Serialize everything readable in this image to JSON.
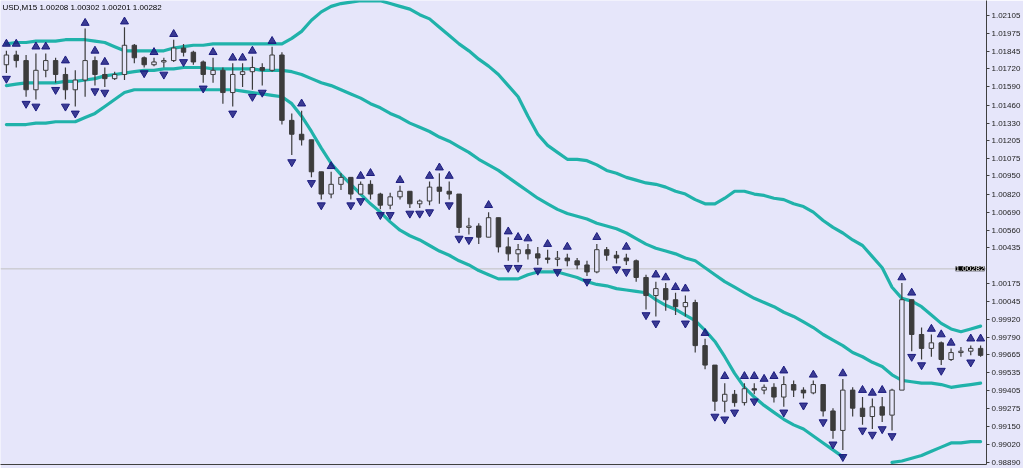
{
  "chart_data": {
    "type": "candlestick",
    "title": "USD,M15 1.00208 1.00302 1.00201 1.00282",
    "color": "#3c3c3c",
    "categories": [
      null,
      null,
      null,
      null,
      null,
      null,
      null,
      null,
      null,
      null,
      null,
      null,
      null,
      null,
      null,
      null,
      null,
      null,
      null,
      null,
      null,
      null,
      null,
      null,
      null,
      null,
      null,
      null,
      null,
      null,
      null,
      null,
      null,
      null,
      null,
      null,
      null,
      null,
      null,
      null,
      null,
      null,
      null,
      null,
      null,
      null,
      null,
      null,
      null,
      null,
      null,
      null,
      null,
      null,
      null,
      null,
      null,
      null,
      null,
      null,
      null,
      null,
      null,
      null,
      null,
      null,
      null,
      null,
      null,
      null,
      null,
      null,
      null,
      null,
      null,
      null,
      null,
      null,
      null,
      null,
      null,
      null,
      null,
      null,
      null,
      null,
      null,
      null,
      null,
      null,
      null,
      null,
      null,
      null,
      null,
      null,
      null,
      null,
      null,
      null
    ],
    "ohlc": [
      [
        1.0175,
        1.0185,
        1.0169,
        1.0182
      ],
      [
        1.0182,
        1.0185,
        1.0173,
        1.0178
      ],
      [
        1.0178,
        1.0182,
        1.0152,
        1.0157
      ],
      [
        1.0157,
        1.0183,
        1.015,
        1.0171
      ],
      [
        1.0171,
        1.0183,
        1.0166,
        1.0178
      ],
      [
        1.0178,
        1.018,
        1.0162,
        1.0168
      ],
      [
        1.0168,
        1.0173,
        1.015,
        1.0157
      ],
      [
        1.0157,
        1.0171,
        1.0145,
        1.0164
      ],
      [
        1.0164,
        1.0201,
        1.0152,
        1.0178
      ],
      [
        1.0178,
        1.0181,
        1.016,
        1.0168
      ],
      [
        1.0168,
        1.0173,
        1.0159,
        1.0165
      ],
      [
        1.0165,
        1.017,
        1.0164,
        1.0168
      ],
      [
        1.0168,
        1.0202,
        1.0164,
        1.0189
      ],
      [
        1.0189,
        1.019,
        1.0176,
        1.018
      ],
      [
        1.018,
        1.0181,
        1.0173,
        1.0175
      ],
      [
        1.0175,
        1.018,
        1.0174,
        1.0177
      ],
      [
        1.0177,
        1.018,
        1.0173,
        1.0178
      ],
      [
        1.0178,
        1.0193,
        1.0177,
        1.0187
      ],
      [
        1.0187,
        1.019,
        1.0181,
        1.0184
      ],
      [
        1.0184,
        1.0185,
        1.0175,
        1.0177
      ],
      [
        1.0177,
        1.0178,
        1.0162,
        1.0168
      ],
      [
        1.0168,
        1.018,
        1.0162,
        1.0171
      ],
      [
        1.0171,
        1.0173,
        1.0147,
        1.0155
      ],
      [
        1.0155,
        1.0176,
        1.0145,
        1.0168
      ],
      [
        1.0168,
        1.0176,
        1.0159,
        1.017
      ],
      [
        1.017,
        1.0181,
        1.0157,
        1.0173
      ],
      [
        1.0173,
        1.0176,
        1.016,
        1.0171
      ],
      [
        1.0171,
        1.0188,
        1.017,
        1.0182
      ],
      [
        1.0182,
        1.0184,
        1.0132,
        1.0135
      ],
      [
        1.0135,
        1.014,
        1.011,
        1.0125
      ],
      [
        1.0125,
        1.0142,
        1.0117,
        1.0121
      ],
      [
        1.0121,
        1.0121,
        1.0094,
        1.0098
      ],
      [
        1.0098,
        1.0098,
        1.0078,
        1.0082
      ],
      [
        1.0082,
        1.0098,
        1.0079,
        1.0089
      ],
      [
        1.0089,
        1.0097,
        1.0085,
        1.0094
      ],
      [
        1.0094,
        1.0094,
        1.0078,
        1.0082
      ],
      [
        1.0082,
        1.0091,
        1.0082,
        1.0089
      ],
      [
        1.0089,
        1.0092,
        1.0078,
        1.0082
      ],
      [
        1.0082,
        1.0083,
        1.0071,
        1.0074
      ],
      [
        1.0074,
        1.0083,
        1.0071,
        1.008
      ],
      [
        1.008,
        1.0088,
        1.0078,
        1.0084
      ],
      [
        1.0084,
        1.0084,
        1.0072,
        1.0075
      ],
      [
        1.0075,
        1.0078,
        1.0072,
        1.0077
      ],
      [
        1.0077,
        1.0091,
        1.0074,
        1.0087
      ],
      [
        1.0087,
        1.0097,
        1.0075,
        1.0084
      ],
      [
        1.0084,
        1.0091,
        1.0078,
        1.0082
      ],
      [
        1.0082,
        1.0082,
        1.0054,
        1.0058
      ],
      [
        1.0058,
        1.0065,
        1.0053,
        1.0059
      ],
      [
        1.0059,
        1.0061,
        1.0046,
        1.0051
      ],
      [
        1.0051,
        1.0069,
        1.0051,
        1.0065
      ],
      [
        1.0065,
        1.0065,
        1.004,
        1.0044
      ],
      [
        1.0044,
        1.0051,
        1.0034,
        1.0039
      ],
      [
        1.0039,
        1.0046,
        1.0033,
        1.0042
      ],
      [
        1.0042,
        1.0046,
        1.0035,
        1.0039
      ],
      [
        1.0039,
        1.0044,
        1.0031,
        1.0036
      ],
      [
        1.0036,
        1.0042,
        1.0032,
        1.0035
      ],
      [
        1.0035,
        1.0041,
        1.003,
        1.0036
      ],
      [
        1.0036,
        1.0039,
        1.003,
        1.0034
      ],
      [
        1.0034,
        1.0036,
        1.0028,
        1.0031
      ],
      [
        1.0031,
        1.0034,
        1.0023,
        1.0026
      ],
      [
        1.0026,
        1.0046,
        1.0025,
        1.0042
      ],
      [
        1.0042,
        1.0044,
        1.0034,
        1.0038
      ],
      [
        1.0038,
        1.0041,
        1.0032,
        1.0036
      ],
      [
        1.0036,
        1.0039,
        1.0031,
        1.0034
      ],
      [
        1.0034,
        1.0035,
        1.0019,
        1.0022
      ],
      [
        1.0022,
        1.0024,
        0.9999,
        1.0009
      ],
      [
        1.0009,
        1.0019,
        0.9994,
        1.0014
      ],
      [
        1.0014,
        1.0018,
        0.9998,
        1.0006
      ],
      [
        1.0006,
        1.0011,
        0.9995,
        1.0001
      ],
      [
        1.0001,
        1.0009,
        0.9994,
        1.0004
      ],
      [
        1.0004,
        1.0006,
        0.9968,
        0.9973
      ],
      [
        0.9973,
        0.9978,
        0.9956,
        0.9959
      ],
      [
        0.9959,
        0.9959,
        0.9926,
        0.9933
      ],
      [
        0.9933,
        0.9946,
        0.9925,
        0.9938
      ],
      [
        0.9938,
        0.9941,
        0.9929,
        0.9932
      ],
      [
        0.9932,
        0.9946,
        0.993,
        0.9942
      ],
      [
        0.9942,
        0.9946,
        0.9938,
        0.9941
      ],
      [
        0.9941,
        0.9945,
        0.9938,
        0.9943
      ],
      [
        0.9943,
        0.9946,
        0.9932,
        0.9936
      ],
      [
        0.9936,
        0.9951,
        0.9929,
        0.9945
      ],
      [
        0.9945,
        0.9948,
        0.9936,
        0.9941
      ],
      [
        0.9941,
        0.9943,
        0.9935,
        0.9939
      ],
      [
        0.9939,
        0.9948,
        0.9938,
        0.9945
      ],
      [
        0.9945,
        0.9945,
        0.9922,
        0.9926
      ],
      [
        0.9926,
        0.9928,
        0.9906,
        0.9912
      ],
      [
        0.9912,
        0.9949,
        0.9898,
        0.9941
      ],
      [
        0.9941,
        0.9943,
        0.9922,
        0.9928
      ],
      [
        0.9928,
        0.9936,
        0.9916,
        0.9922
      ],
      [
        0.9922,
        0.9935,
        0.9913,
        0.9929
      ],
      [
        0.9929,
        0.9936,
        0.9918,
        0.9923
      ],
      [
        0.9923,
        0.9942,
        0.9912,
        0.9941
      ],
      [
        0.9941,
        1.0018,
        0.9941,
        1.0006
      ],
      [
        1.0006,
        1.0006,
        0.9969,
        0.9981
      ],
      [
        0.9981,
        0.9986,
        0.9963,
        0.9971
      ],
      [
        0.9971,
        0.9981,
        0.9965,
        0.9975
      ],
      [
        0.9975,
        0.9976,
        0.9959,
        0.9963
      ],
      [
        0.9963,
        0.9971,
        0.9962,
        0.9968
      ],
      [
        0.9968,
        0.9972,
        0.9965,
        0.9969
      ],
      [
        0.9969,
        0.9973,
        0.9966,
        0.9971
      ],
      [
        0.9971,
        0.9973,
        0.9965,
        0.9966
      ]
    ],
    "series": [
      {
        "type": "line",
        "color": "#20b2aa",
        "values": [
          1.019,
          1.0191,
          1.0191,
          1.0192,
          1.0192,
          1.0192,
          1.0193,
          1.0193,
          1.0193,
          1.0192,
          1.0191,
          1.0188,
          1.0185,
          1.0185,
          1.0185,
          1.0185,
          1.0185,
          1.0187,
          1.0188,
          1.0189,
          1.0189,
          1.019,
          1.019,
          1.019,
          1.019,
          1.019,
          1.019,
          1.019,
          1.019,
          1.0194,
          1.0199,
          1.0207,
          1.0213,
          1.0217,
          1.0219,
          1.022,
          1.0221,
          1.0221,
          1.0221,
          1.0219,
          1.0217,
          1.0215,
          1.0211,
          1.0208,
          1.0202,
          1.0196,
          1.019,
          1.0185,
          1.0179,
          1.0174,
          1.0168,
          1.016,
          1.0152,
          1.0138,
          1.0125,
          1.0117,
          1.0112,
          1.0107,
          1.0107,
          1.0106,
          1.0103,
          1.0099,
          1.0097,
          1.0094,
          1.0092,
          1.009,
          1.0089,
          1.0087,
          1.0084,
          1.0082,
          1.0078,
          1.0075,
          1.0075,
          1.0079,
          1.0084,
          1.0084,
          1.0082,
          1.0081,
          1.0079,
          1.0078,
          1.0075,
          1.0073,
          1.0069,
          1.0063,
          1.0058,
          1.0054,
          1.0049,
          1.0045,
          1.0037,
          1.0029,
          1.0015,
          1.0007,
          1.0005,
          1.0001,
          0.9995,
          0.9989,
          0.9985,
          0.9983,
          0.9985,
          0.9987
        ]
      },
      {
        "type": "line",
        "color": "#20b2aa",
        "values": [
          1.016,
          1.0161,
          1.0162,
          1.0162,
          1.0162,
          1.0162,
          1.0163,
          1.0163,
          1.0164,
          1.0165,
          1.0167,
          1.0168,
          1.0169,
          1.017,
          1.0171,
          1.0171,
          1.0172,
          1.0172,
          1.0173,
          1.0173,
          1.0173,
          1.0172,
          1.0172,
          1.0172,
          1.0172,
          1.0172,
          1.0171,
          1.0171,
          1.0171,
          1.017,
          1.0168,
          1.0165,
          1.0162,
          1.016,
          1.0157,
          1.0154,
          1.0151,
          1.0147,
          1.0144,
          1.014,
          1.0137,
          1.0133,
          1.013,
          1.0127,
          1.0123,
          1.012,
          1.0116,
          1.0112,
          1.0107,
          1.0103,
          1.0099,
          1.0094,
          1.0089,
          1.0084,
          1.0079,
          1.0075,
          1.0071,
          1.0068,
          1.0066,
          1.0064,
          1.0061,
          1.0059,
          1.0057,
          1.0054,
          1.005,
          1.0046,
          1.0043,
          1.0041,
          1.0039,
          1.0036,
          1.0034,
          1.0029,
          1.0024,
          1.0019,
          1.0015,
          1.0011,
          1.0007,
          1.0004,
          1.0001,
          0.9997,
          0.9994,
          0.999,
          0.9986,
          0.9981,
          0.9977,
          0.9973,
          0.9968,
          0.9965,
          0.9961,
          0.9958,
          0.9952,
          0.9948,
          0.9947,
          0.9946,
          0.9946,
          0.9945,
          0.9943,
          0.9944,
          0.9945,
          0.9946
        ]
      },
      {
        "type": "line",
        "color": "#20b2aa",
        "values": [
          1.0132,
          1.0132,
          1.0132,
          1.0133,
          1.0133,
          1.0134,
          1.0134,
          1.0134,
          1.0137,
          1.014,
          1.0145,
          1.015,
          1.0155,
          1.0157,
          1.0157,
          1.0157,
          1.0157,
          1.0157,
          1.0157,
          1.0157,
          1.0157,
          1.0157,
          1.0157,
          1.0157,
          1.0156,
          1.0155,
          1.0154,
          1.0153,
          1.0152,
          1.0147,
          1.0138,
          1.0127,
          1.0115,
          1.0104,
          1.0096,
          1.0089,
          1.0082,
          1.0075,
          1.0069,
          1.0062,
          1.0056,
          1.0052,
          1.0049,
          1.0045,
          1.0041,
          1.0038,
          1.0034,
          1.0031,
          1.0027,
          1.0024,
          1.0021,
          1.0021,
          1.0021,
          1.0024,
          1.0026,
          1.0026,
          1.0026,
          1.0024,
          1.0022,
          1.0019,
          1.0017,
          1.0016,
          1.0014,
          1.0013,
          1.0012,
          1.0011,
          1.0006,
          1.0002,
          0.9999,
          0.9995,
          0.9991,
          0.9984,
          0.9976,
          0.9965,
          0.9953,
          0.9943,
          0.9936,
          0.993,
          0.9925,
          0.992,
          0.9916,
          0.9913,
          0.9908,
          0.9903,
          0.9898,
          0.9893,
          null,
          null,
          null,
          null,
          0.9889,
          0.989,
          0.9892,
          0.9894,
          0.9897,
          0.99,
          0.9903,
          0.9903,
          0.9904,
          0.9904
        ]
      },
      {
        "type": "scatter",
        "color": "#1c1c80",
        "marker": "triangle",
        "values": [
          1.019,
          1.019,
          null,
          1.0188,
          1.0188,
          null,
          1.0178,
          null,
          1.0205,
          1.0185,
          1.0177,
          null,
          1.0206,
          null,
          null,
          1.0184,
          null,
          1.0197,
          null,
          null,
          null,
          1.0184,
          null,
          1.018,
          1.018,
          1.0185,
          null,
          1.0192,
          null,
          null,
          1.0147,
          null,
          null,
          1.0102,
          null,
          null,
          1.0095,
          1.0097,
          null,
          null,
          1.0092,
          null,
          null,
          1.0095,
          1.0101,
          1.0095,
          null,
          null,
          null,
          1.0074,
          null,
          1.0055,
          1.0051,
          1.005,
          null,
          1.0046,
          null,
          1.0044,
          null,
          null,
          1.0051,
          null,
          null,
          1.0044,
          null,
          null,
          1.0024,
          1.0022,
          1.0015,
          1.0014,
          null,
          0.9982,
          null,
          0.9951,
          null,
          0.9951,
          0.9951,
          0.9949,
          0.9951,
          0.9955,
          null,
          null,
          0.9952,
          null,
          null,
          0.9953,
          null,
          0.9941,
          0.9939,
          0.9941,
          null,
          1.0022,
          1.0011,
          null,
          0.9985,
          0.9981,
          0.9975,
          null,
          0.9978,
          0.9978
        ]
      },
      {
        "type": "scatter",
        "color": "#1c1c80",
        "marker": "triangle",
        "values": [
          1.0165,
          null,
          1.0147,
          1.0145,
          null,
          1.0157,
          1.0145,
          1.014,
          null,
          1.0156,
          1.0155,
          null,
          null,
          null,
          1.0169,
          null,
          1.0168,
          null,
          1.0177,
          null,
          1.0158,
          null,
          null,
          1.014,
          null,
          1.0152,
          1.0155,
          null,
          null,
          1.0105,
          null,
          1.009,
          1.0074,
          null,
          null,
          1.0074,
          1.0077,
          null,
          1.0067,
          1.0067,
          null,
          1.0068,
          1.0068,
          1.0069,
          null,
          1.0074,
          1.005,
          1.0049,
          null,
          null,
          null,
          1.0029,
          1.0029,
          null,
          1.0027,
          null,
          1.0026,
          null,
          null,
          1.0019,
          null,
          null,
          1.0028,
          1.0026,
          null,
          0.9995,
          0.9989,
          null,
          null,
          0.9989,
          null,
          null,
          0.9922,
          0.992,
          0.9925,
          null,
          0.9933,
          null,
          null,
          0.9925,
          null,
          0.993,
          null,
          0.9918,
          0.9902,
          0.9893,
          null,
          0.9912,
          0.9909,
          0.9913,
          0.9908,
          null,
          0.9965,
          0.9959,
          null,
          0.9955,
          null,
          null,
          0.9961,
          null
        ]
      }
    ],
    "ylim": [
      0.98875,
      1.02212
    ],
    "yticks": [
      1.02105,
      1.01975,
      1.01845,
      {
        "value": 1.0172,
        "label": "1.01720"
      },
      {
        "value": 1.0159,
        "label": "1.01590"
      },
      {
        "value": 1.0146,
        "label": "1.01460"
      },
      {
        "value": 1.0133,
        "label": "1.01330"
      },
      1.01205,
      1.01075,
      {
        "value": 1.0095,
        "label": "1.00950"
      },
      {
        "value": 1.0082,
        "label": "1.00820"
      },
      {
        "value": 1.0069,
        "label": "1.00690"
      },
      {
        "value": 1.0056,
        "label": "1.00560"
      },
      1.00435,
      1.00175,
      1.00045,
      {
        "value": 0.9992,
        "label": "0.99920"
      },
      {
        "value": 0.9979,
        "label": "0.99790"
      },
      0.99665,
      0.99535,
      0.99405,
      0.99275,
      {
        "value": 0.9915,
        "label": "0.99150"
      },
      {
        "value": 0.9902,
        "label": "0.99020"
      },
      {
        "value": 0.9889,
        "label": "0.98890"
      }
    ],
    "ref_lines": [
      {
        "axis": "y",
        "value": 1.00282,
        "label": "1.00282",
        "color": "#c0c0c0"
      }
    ],
    "grid": false,
    "tick_labels": "y"
  }
}
